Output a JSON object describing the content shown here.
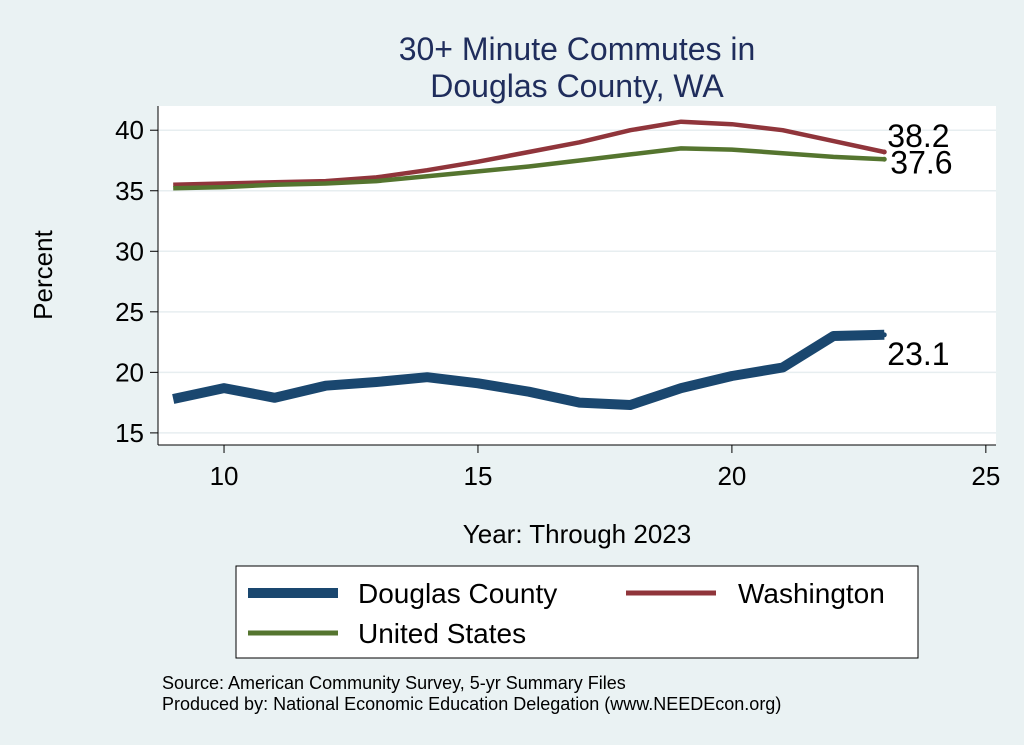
{
  "chart_data": {
    "type": "line",
    "title": [
      "30+ Minute Commutes in",
      "Douglas County, WA"
    ],
    "xlabel": "Year: Through 2023",
    "ylabel": "Percent",
    "xlim": [
      8.7,
      25.2
    ],
    "ylim": [
      14,
      42
    ],
    "xticks": [
      10,
      15,
      20,
      25
    ],
    "yticks": [
      15,
      20,
      25,
      30,
      35,
      40
    ],
    "grid": true,
    "series": [
      {
        "name": "Douglas County",
        "color": "#1a476f",
        "x": [
          9,
          10,
          11,
          12,
          13,
          14,
          15,
          16,
          17,
          18,
          19,
          20,
          21,
          22,
          23
        ],
        "values": [
          17.8,
          18.7,
          17.9,
          18.9,
          19.2,
          19.6,
          19.1,
          18.4,
          17.5,
          17.3,
          18.7,
          19.7,
          20.4,
          23.0,
          23.1
        ],
        "end_label": "23.1"
      },
      {
        "name": "Washington",
        "color": "#90353b",
        "x": [
          9,
          10,
          11,
          12,
          13,
          14,
          15,
          16,
          17,
          18,
          19,
          20,
          21,
          22,
          23
        ],
        "values": [
          35.5,
          35.6,
          35.7,
          35.8,
          36.1,
          36.7,
          37.4,
          38.2,
          39.0,
          40.0,
          40.7,
          40.5,
          40.0,
          39.1,
          38.2
        ],
        "end_label": "38.2"
      },
      {
        "name": "United States",
        "color": "#55752f",
        "x": [
          9,
          10,
          11,
          12,
          13,
          14,
          15,
          16,
          17,
          18,
          19,
          20,
          21,
          22,
          23
        ],
        "values": [
          35.2,
          35.3,
          35.5,
          35.6,
          35.8,
          36.2,
          36.6,
          37.0,
          37.5,
          38.0,
          38.5,
          38.4,
          38.1,
          37.8,
          37.6
        ],
        "end_label": "37.6"
      }
    ],
    "legend": [
      "Douglas County",
      "Washington",
      "United States"
    ],
    "notes": [
      "Source: American Community Survey, 5-yr Summary Files",
      "Produced by: National Economic Education Delegation (www.NEEDEcon.org)"
    ]
  }
}
